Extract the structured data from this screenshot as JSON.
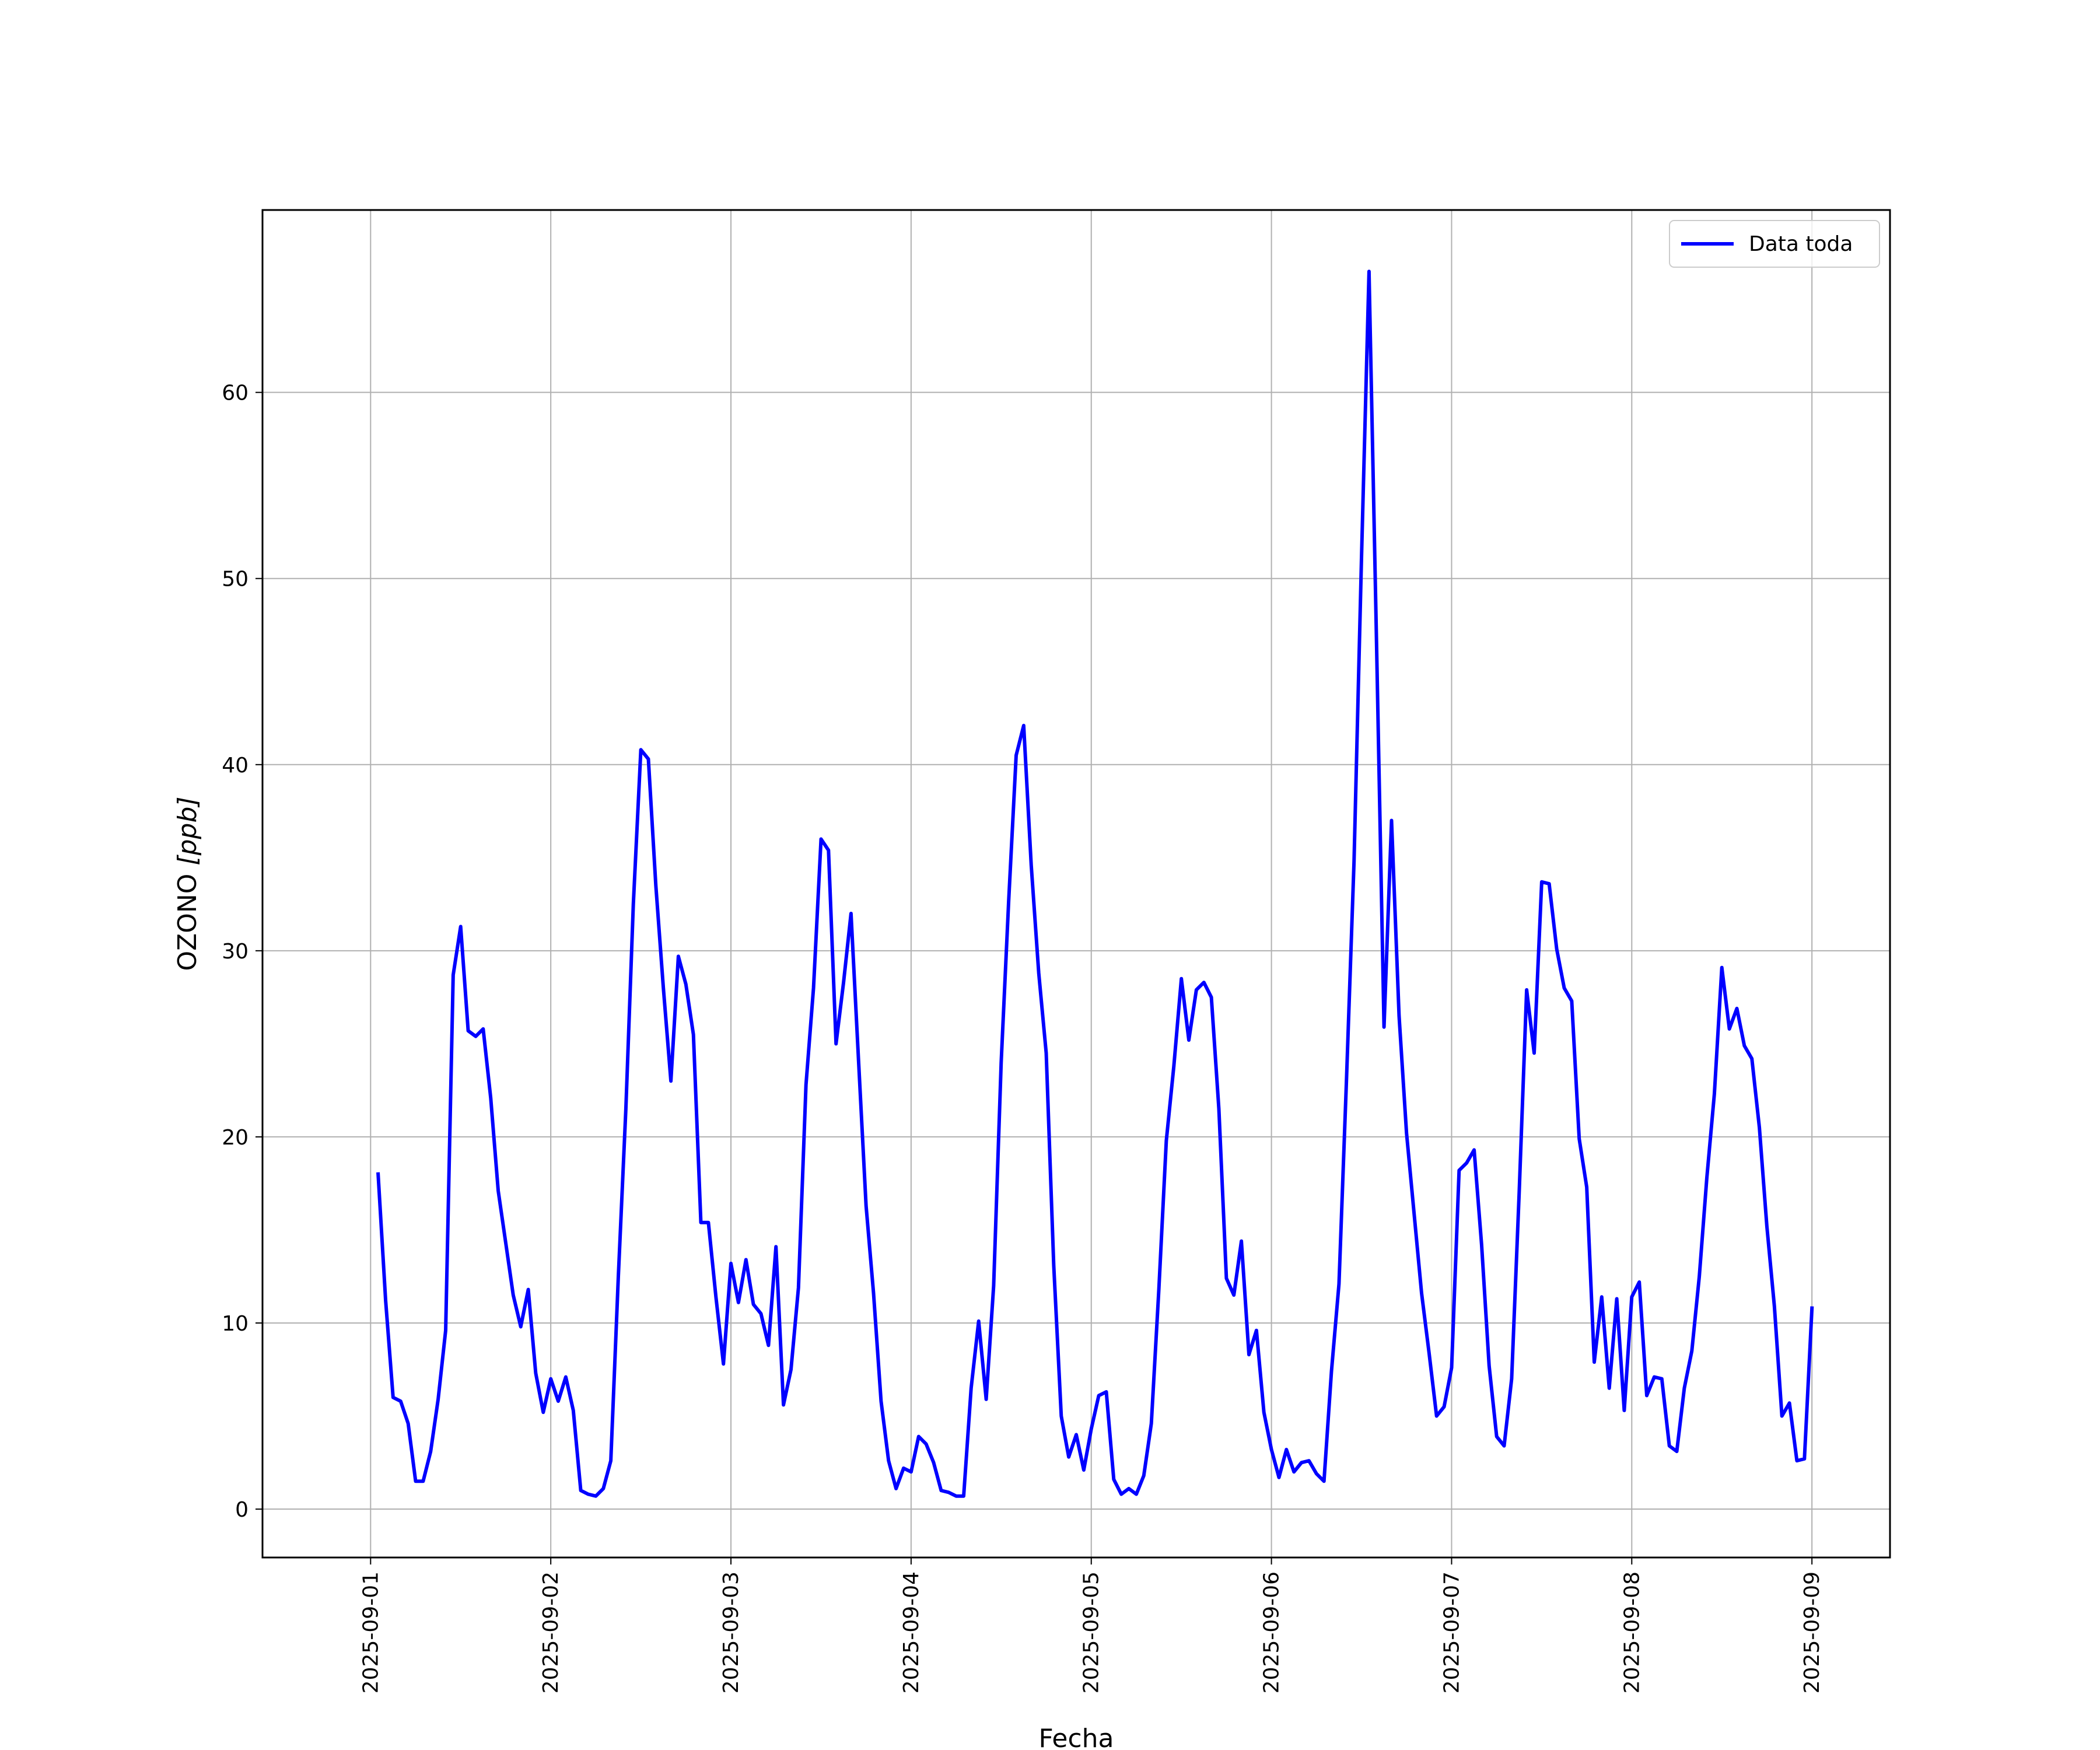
{
  "chart_data": {
    "type": "line",
    "xlabel": "Fecha",
    "ylabel_main": "OZONO",
    "ylabel_unit": "[ppb]",
    "x_ticks": [
      "2025-09-01",
      "2025-09-02",
      "2025-09-03",
      "2025-09-04",
      "2025-09-05",
      "2025-09-06",
      "2025-09-07",
      "2025-09-08",
      "2025-09-09"
    ],
    "y_ticks": [
      0,
      10,
      20,
      30,
      40,
      50,
      60
    ],
    "xlim": [
      "2025-08-31T09:36",
      "2025-09-09T10:24"
    ],
    "ylim": [
      -2.6,
      69.8
    ],
    "grid": true,
    "legend_position": "top-right",
    "series": [
      {
        "name": "Data toda",
        "color": "#0000ff",
        "x": [
          "2025-09-01T01:00",
          "2025-09-01T02:00",
          "2025-09-01T03:00",
          "2025-09-01T04:00",
          "2025-09-01T05:00",
          "2025-09-01T06:00",
          "2025-09-01T07:00",
          "2025-09-01T08:00",
          "2025-09-01T09:00",
          "2025-09-01T10:00",
          "2025-09-01T11:00",
          "2025-09-01T12:00",
          "2025-09-01T13:00",
          "2025-09-01T14:00",
          "2025-09-01T15:00",
          "2025-09-01T16:00",
          "2025-09-01T17:00",
          "2025-09-01T18:00",
          "2025-09-01T19:00",
          "2025-09-01T20:00",
          "2025-09-01T21:00",
          "2025-09-01T22:00",
          "2025-09-01T23:00",
          "2025-09-02T00:00",
          "2025-09-02T01:00",
          "2025-09-02T02:00",
          "2025-09-02T03:00",
          "2025-09-02T04:00",
          "2025-09-02T05:00",
          "2025-09-02T06:00",
          "2025-09-02T07:00",
          "2025-09-02T08:00",
          "2025-09-02T09:00",
          "2025-09-02T10:00",
          "2025-09-02T11:00",
          "2025-09-02T12:00",
          "2025-09-02T13:00",
          "2025-09-02T14:00",
          "2025-09-02T15:00",
          "2025-09-02T16:00",
          "2025-09-02T17:00",
          "2025-09-02T18:00",
          "2025-09-02T19:00",
          "2025-09-02T20:00",
          "2025-09-02T21:00",
          "2025-09-02T22:00",
          "2025-09-02T23:00",
          "2025-09-03T00:00",
          "2025-09-03T01:00",
          "2025-09-03T02:00",
          "2025-09-03T03:00",
          "2025-09-03T04:00",
          "2025-09-03T05:00",
          "2025-09-03T06:00",
          "2025-09-03T07:00",
          "2025-09-03T08:00",
          "2025-09-03T09:00",
          "2025-09-03T10:00",
          "2025-09-03T11:00",
          "2025-09-03T12:00",
          "2025-09-03T13:00",
          "2025-09-03T14:00",
          "2025-09-03T15:00",
          "2025-09-03T16:00",
          "2025-09-03T17:00",
          "2025-09-03T18:00",
          "2025-09-03T19:00",
          "2025-09-03T20:00",
          "2025-09-03T21:00",
          "2025-09-03T22:00",
          "2025-09-03T23:00",
          "2025-09-04T00:00",
          "2025-09-04T01:00",
          "2025-09-04T02:00",
          "2025-09-04T03:00",
          "2025-09-04T04:00",
          "2025-09-04T05:00",
          "2025-09-04T06:00",
          "2025-09-04T07:00",
          "2025-09-04T08:00",
          "2025-09-04T09:00",
          "2025-09-04T10:00",
          "2025-09-04T11:00",
          "2025-09-04T12:00",
          "2025-09-04T13:00",
          "2025-09-04T14:00",
          "2025-09-04T15:00",
          "2025-09-04T16:00",
          "2025-09-04T17:00",
          "2025-09-04T18:00",
          "2025-09-04T19:00",
          "2025-09-04T20:00",
          "2025-09-04T21:00",
          "2025-09-04T22:00",
          "2025-09-04T23:00",
          "2025-09-05T00:00",
          "2025-09-05T01:00",
          "2025-09-05T02:00",
          "2025-09-05T03:00",
          "2025-09-05T04:00",
          "2025-09-05T05:00",
          "2025-09-05T06:00",
          "2025-09-05T07:00",
          "2025-09-05T08:00",
          "2025-09-05T09:00",
          "2025-09-05T10:00",
          "2025-09-05T11:00",
          "2025-09-05T12:00",
          "2025-09-05T13:00",
          "2025-09-05T14:00",
          "2025-09-05T15:00",
          "2025-09-05T16:00",
          "2025-09-05T17:00",
          "2025-09-05T18:00",
          "2025-09-05T19:00",
          "2025-09-05T20:00",
          "2025-09-05T21:00",
          "2025-09-05T22:00",
          "2025-09-05T23:00",
          "2025-09-06T00:00",
          "2025-09-06T01:00",
          "2025-09-06T02:00",
          "2025-09-06T03:00",
          "2025-09-06T04:00",
          "2025-09-06T05:00",
          "2025-09-06T06:00",
          "2025-09-06T07:00",
          "2025-09-06T08:00",
          "2025-09-06T09:00",
          "2025-09-06T10:00",
          "2025-09-06T11:00",
          "2025-09-06T12:00",
          "2025-09-06T13:00",
          "2025-09-06T14:00",
          "2025-09-06T15:00",
          "2025-09-06T16:00",
          "2025-09-06T17:00",
          "2025-09-06T18:00",
          "2025-09-06T19:00",
          "2025-09-06T20:00",
          "2025-09-06T21:00",
          "2025-09-06T22:00",
          "2025-09-06T23:00",
          "2025-09-07T00:00",
          "2025-09-07T01:00",
          "2025-09-07T02:00",
          "2025-09-07T03:00",
          "2025-09-07T04:00",
          "2025-09-07T05:00",
          "2025-09-07T06:00",
          "2025-09-07T07:00",
          "2025-09-07T08:00",
          "2025-09-07T09:00",
          "2025-09-07T10:00",
          "2025-09-07T11:00",
          "2025-09-07T12:00",
          "2025-09-07T13:00",
          "2025-09-07T14:00",
          "2025-09-07T15:00",
          "2025-09-07T16:00",
          "2025-09-07T17:00",
          "2025-09-07T18:00",
          "2025-09-07T19:00",
          "2025-09-07T20:00",
          "2025-09-07T21:00",
          "2025-09-07T22:00",
          "2025-09-07T23:00",
          "2025-09-08T00:00",
          "2025-09-08T01:00",
          "2025-09-08T02:00",
          "2025-09-08T03:00",
          "2025-09-08T04:00",
          "2025-09-08T05:00",
          "2025-09-08T06:00",
          "2025-09-08T07:00",
          "2025-09-08T08:00",
          "2025-09-08T09:00",
          "2025-09-08T10:00",
          "2025-09-08T11:00",
          "2025-09-08T12:00",
          "2025-09-08T13:00",
          "2025-09-08T14:00",
          "2025-09-08T15:00",
          "2025-09-08T16:00",
          "2025-09-08T17:00",
          "2025-09-08T18:00",
          "2025-09-08T19:00",
          "2025-09-08T20:00",
          "2025-09-08T21:00",
          "2025-09-08T22:00",
          "2025-09-08T23:00",
          "2025-09-09T00:00"
        ],
        "y": [
          18.0,
          11.2,
          6.0,
          5.8,
          4.6,
          1.5,
          1.5,
          3.1,
          5.9,
          9.6,
          28.7,
          31.3,
          25.7,
          25.4,
          25.8,
          22.1,
          17.1,
          14.3,
          11.5,
          9.8,
          11.8,
          7.3,
          5.2,
          7.0,
          5.8,
          7.1,
          5.3,
          1.0,
          0.8,
          0.7,
          1.1,
          2.6,
          12.5,
          21.5,
          32.5,
          40.8,
          40.3,
          33.5,
          28.0,
          23.0,
          29.7,
          28.2,
          25.5,
          15.4,
          15.4,
          11.4,
          7.8,
          13.2,
          11.1,
          13.4,
          11.0,
          10.5,
          8.8,
          14.1,
          5.6,
          7.5,
          11.9,
          22.8,
          28.0,
          36.0,
          35.4,
          25.0,
          28.3,
          32.0,
          24.1,
          16.3,
          11.6,
          5.8,
          2.6,
          1.1,
          2.2,
          2.0,
          3.9,
          3.5,
          2.5,
          1.0,
          0.9,
          0.7,
          0.7,
          6.5,
          10.1,
          5.9,
          12.0,
          24.0,
          32.7,
          40.5,
          42.1,
          34.6,
          28.8,
          24.5,
          13.1,
          5.0,
          2.8,
          4.0,
          2.1,
          4.3,
          6.1,
          6.3,
          1.6,
          0.8,
          1.1,
          0.8,
          1.8,
          4.6,
          11.8,
          19.8,
          23.8,
          28.5,
          25.2,
          27.9,
          28.3,
          27.5,
          21.5,
          12.4,
          11.5,
          14.4,
          8.3,
          9.6,
          5.2,
          3.2,
          1.7,
          3.2,
          2.0,
          2.5,
          2.6,
          1.9,
          1.5,
          7.4,
          12.1,
          23.1,
          34.8,
          51.1,
          66.5,
          46.5,
          25.9,
          37.0,
          26.5,
          20.2,
          15.9,
          11.6,
          8.4,
          5.0,
          5.5,
          7.6,
          18.2,
          18.6,
          19.3,
          14.2,
          7.7,
          3.9,
          3.4,
          7.0,
          17.0,
          27.9,
          24.5,
          33.7,
          33.6,
          30.1,
          28.0,
          27.3,
          19.9,
          17.3,
          7.9,
          11.4,
          6.5,
          11.3,
          5.3,
          11.4,
          12.2,
          6.1,
          7.1,
          7.0,
          3.4,
          3.1,
          6.5,
          8.5,
          12.5,
          17.8,
          22.3,
          29.1,
          25.8,
          26.9,
          24.9,
          24.2,
          20.5,
          15.2,
          10.9,
          5.0,
          5.7,
          2.6,
          2.7,
          10.8
        ]
      }
    ]
  }
}
